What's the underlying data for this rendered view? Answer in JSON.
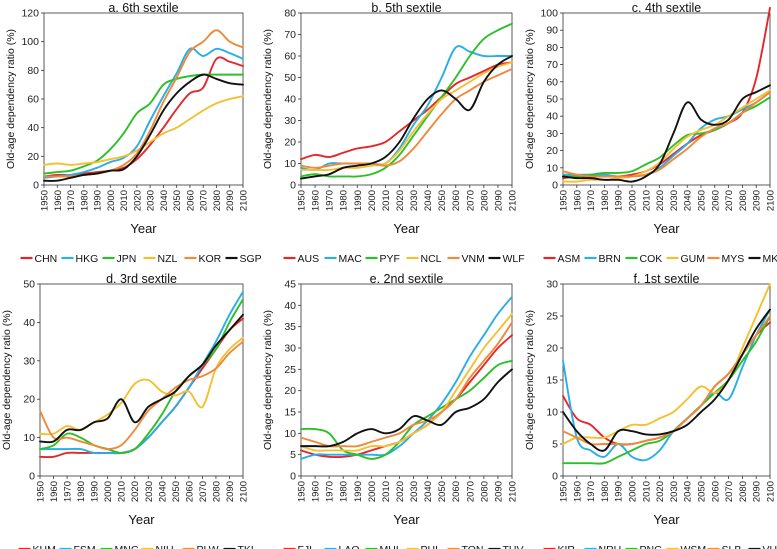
{
  "figure": {
    "xlabel": "Year",
    "ylabel": "Old-age dependency ratio (%)",
    "x_ticks": [
      1950,
      1960,
      1970,
      1980,
      1990,
      2000,
      2010,
      2020,
      2030,
      2040,
      2050,
      2060,
      2070,
      2080,
      2090,
      2100
    ],
    "palette": [
      "#e8262a",
      "#29aee5",
      "#2bc028",
      "#f5c030",
      "#ee8a3a",
      "#111111"
    ]
  },
  "chart_data": [
    {
      "type": "line",
      "title": "a. 6th sextile",
      "xlabel": "Year",
      "ylabel": "Old-age dependency ratio (%)",
      "xlim": [
        1950,
        2100
      ],
      "ylim": [
        0,
        120
      ],
      "yticks": [
        0,
        20,
        40,
        60,
        80,
        100,
        120
      ],
      "x": [
        1950,
        1960,
        1970,
        1980,
        1990,
        2000,
        2010,
        2020,
        2030,
        2040,
        2050,
        2060,
        2070,
        2080,
        2090,
        2100
      ],
      "series": [
        {
          "name": "CHN",
          "color": "#e8262a",
          "values": [
            6,
            7,
            7,
            8,
            9,
            10,
            12,
            18,
            28,
            40,
            53,
            64,
            68,
            88,
            86,
            83
          ]
        },
        {
          "name": "HKG",
          "color": "#29aee5",
          "values": [
            5,
            6,
            7,
            9,
            12,
            16,
            19,
            27,
            45,
            62,
            78,
            95,
            90,
            95,
            92,
            88
          ]
        },
        {
          "name": "JPN",
          "color": "#2bc028",
          "values": [
            8,
            9,
            10,
            13,
            17,
            25,
            36,
            50,
            57,
            70,
            74,
            76,
            77,
            77,
            77,
            77
          ]
        },
        {
          "name": "NZL",
          "color": "#f5c030",
          "values": [
            14,
            15,
            14,
            15,
            16,
            18,
            20,
            24,
            30,
            36,
            40,
            46,
            52,
            57,
            60,
            62
          ]
        },
        {
          "name": "KOR",
          "color": "#ee8a3a",
          "values": [
            6,
            6,
            6,
            7,
            8,
            10,
            14,
            22,
            38,
            58,
            75,
            93,
            100,
            108,
            100,
            96
          ]
        },
        {
          "name": "SGP",
          "color": "#111111",
          "values": [
            3,
            3,
            5,
            7,
            8,
            10,
            11,
            20,
            35,
            52,
            64,
            72,
            77,
            74,
            71,
            70
          ]
        }
      ]
    },
    {
      "type": "line",
      "title": "b. 5th sextile",
      "xlabel": "Year",
      "ylabel": "Old-age dependency ratio (%)",
      "xlim": [
        1950,
        2100
      ],
      "ylim": [
        0,
        80
      ],
      "yticks": [
        0,
        10,
        20,
        30,
        40,
        50,
        60,
        70,
        80
      ],
      "x": [
        1950,
        1960,
        1970,
        1980,
        1990,
        2000,
        2010,
        2020,
        2030,
        2040,
        2050,
        2060,
        2070,
        2080,
        2090,
        2100
      ],
      "series": [
        {
          "name": "AUS",
          "color": "#e8262a",
          "values": [
            12,
            14,
            13,
            15,
            17,
            18,
            20,
            25,
            30,
            35,
            41,
            47,
            50,
            53,
            56,
            57
          ]
        },
        {
          "name": "MAC",
          "color": "#29aee5",
          "values": [
            8,
            7,
            10,
            10,
            10,
            10,
            10,
            17,
            28,
            37,
            50,
            64,
            62,
            60,
            60,
            60
          ]
        },
        {
          "name": "PYF",
          "color": "#2bc028",
          "values": [
            4,
            5,
            4,
            4,
            4,
            5,
            8,
            14,
            23,
            32,
            41,
            50,
            60,
            68,
            72,
            75
          ]
        },
        {
          "name": "NCL",
          "color": "#f5c030",
          "values": [
            7,
            7,
            7,
            8,
            8,
            9,
            10,
            16,
            25,
            33,
            40,
            44,
            48,
            52,
            55,
            57
          ]
        },
        {
          "name": "VNM",
          "color": "#ee8a3a",
          "values": [
            9,
            8,
            9,
            10,
            10,
            10,
            9,
            11,
            17,
            25,
            33,
            40,
            44,
            48,
            51,
            54
          ]
        },
        {
          "name": "WLF",
          "color": "#111111",
          "values": [
            3,
            4,
            5,
            8,
            9,
            10,
            13,
            20,
            31,
            40,
            44,
            40,
            35,
            48,
            56,
            60
          ]
        }
      ]
    },
    {
      "type": "line",
      "title": "c. 4th sextile",
      "xlabel": "Year",
      "ylabel": "Old-age dependency ratio (%)",
      "xlim": [
        1950,
        2100
      ],
      "ylim": [
        0,
        100
      ],
      "yticks": [
        0,
        10,
        20,
        30,
        40,
        50,
        60,
        70,
        80,
        90,
        100
      ],
      "x": [
        1950,
        1960,
        1970,
        1980,
        1990,
        2000,
        2010,
        2020,
        2030,
        2040,
        2050,
        2060,
        2070,
        2080,
        2090,
        2100
      ],
      "series": [
        {
          "name": "ASM",
          "color": "#e8262a",
          "values": [
            4,
            5,
            5,
            5,
            5,
            6,
            8,
            12,
            18,
            24,
            29,
            32,
            36,
            42,
            62,
            103
          ]
        },
        {
          "name": "BRN",
          "color": "#29aee5",
          "values": [
            6,
            6,
            6,
            6,
            5,
            5,
            6,
            10,
            17,
            24,
            33,
            38,
            40,
            44,
            48,
            54
          ]
        },
        {
          "name": "COK",
          "color": "#2bc028",
          "values": [
            5,
            5,
            6,
            7,
            7,
            8,
            12,
            16,
            23,
            29,
            30,
            32,
            36,
            42,
            46,
            51
          ]
        },
        {
          "name": "GUM",
          "color": "#f5c030",
          "values": [
            2,
            2,
            3,
            3,
            4,
            5,
            8,
            13,
            21,
            28,
            32,
            35,
            40,
            45,
            50,
            55
          ]
        },
        {
          "name": "MYS",
          "color": "#ee8a3a",
          "values": [
            8,
            6,
            5,
            5,
            5,
            5,
            6,
            9,
            15,
            21,
            28,
            33,
            36,
            42,
            48,
            54
          ]
        },
        {
          "name": "MKD",
          "color": "#111111",
          "values": [
            5,
            4,
            4,
            3,
            3,
            2,
            5,
            12,
            30,
            48,
            38,
            35,
            38,
            50,
            54,
            58
          ]
        }
      ]
    },
    {
      "type": "line",
      "title": "d. 3rd sextile",
      "xlabel": "Year",
      "ylabel": "Old-age dependency ratio (%)",
      "xlim": [
        1950,
        2100
      ],
      "ylim": [
        0,
        50
      ],
      "yticks": [
        0,
        10,
        20,
        30,
        40,
        50
      ],
      "x": [
        1950,
        1960,
        1970,
        1980,
        1990,
        2000,
        2010,
        2020,
        2030,
        2040,
        2050,
        2060,
        2070,
        2080,
        2090,
        2100
      ],
      "series": [
        {
          "name": "KHM",
          "color": "#e8262a",
          "values": [
            5,
            5,
            6,
            6,
            6,
            6,
            6,
            7,
            10,
            14,
            18,
            23,
            28,
            33,
            38,
            41
          ]
        },
        {
          "name": "FSM",
          "color": "#29aee5",
          "values": [
            7,
            7,
            7,
            7,
            6,
            6,
            6,
            7,
            10,
            14,
            18,
            23,
            29,
            35,
            42,
            48
          ]
        },
        {
          "name": "MNG",
          "color": "#2bc028",
          "values": [
            7,
            8,
            11,
            10,
            8,
            7,
            6,
            7,
            11,
            16,
            22,
            26,
            29,
            33,
            40,
            46
          ]
        },
        {
          "name": "NIU",
          "color": "#f5c030",
          "values": [
            11,
            11,
            13,
            12,
            14,
            16,
            19,
            24,
            25,
            22,
            21,
            22,
            18,
            28,
            33,
            36
          ]
        },
        {
          "name": "PLW",
          "color": "#ee8a3a",
          "values": [
            17,
            10,
            10,
            9,
            8,
            7,
            8,
            12,
            17,
            20,
            23,
            25,
            26,
            28,
            32,
            35
          ]
        },
        {
          "name": "TKL",
          "color": "#111111",
          "values": [
            9,
            9,
            12,
            12,
            14,
            15,
            20,
            14,
            18,
            20,
            22,
            26,
            29,
            34,
            38,
            42
          ]
        }
      ]
    },
    {
      "type": "line",
      "title": "e. 2nd sextile",
      "xlabel": "Year",
      "ylabel": "Old-age dependency ratio (%)",
      "xlim": [
        1950,
        2100
      ],
      "ylim": [
        0,
        45
      ],
      "yticks": [
        0,
        5,
        10,
        15,
        20,
        25,
        30,
        35,
        40,
        45
      ],
      "x": [
        1950,
        1960,
        1970,
        1980,
        1990,
        2000,
        2010,
        2020,
        2030,
        2040,
        2050,
        2060,
        2070,
        2080,
        2090,
        2100
      ],
      "series": [
        {
          "name": "FJI",
          "color": "#e8262a",
          "values": [
            6,
            5,
            4.5,
            4.5,
            5,
            6,
            7,
            8,
            10,
            12,
            15,
            18,
            22,
            26,
            30,
            33
          ]
        },
        {
          "name": "LAO",
          "color": "#29aee5",
          "values": [
            4,
            5,
            5,
            5,
            5,
            5,
            5,
            7,
            10,
            13,
            17,
            22,
            28,
            33,
            38,
            42
          ]
        },
        {
          "name": "MHL",
          "color": "#2bc028",
          "values": [
            11,
            11,
            10,
            6,
            5,
            4,
            5,
            8,
            12,
            14,
            16,
            18,
            20,
            23,
            26,
            27
          ]
        },
        {
          "name": "PHL",
          "color": "#f5c030",
          "values": [
            7,
            6,
            6,
            6,
            6,
            7,
            7,
            8,
            10,
            12,
            15,
            20,
            25,
            30,
            34,
            38
          ]
        },
        {
          "name": "TON",
          "color": "#ee8a3a",
          "values": [
            9,
            8,
            7,
            7,
            7,
            8,
            9,
            10,
            12,
            13,
            15,
            18,
            23,
            27,
            31,
            36
          ]
        },
        {
          "name": "TUV",
          "color": "#111111",
          "values": [
            7,
            7,
            7,
            8,
            10,
            11,
            10,
            11,
            14,
            13,
            12,
            15,
            16,
            18,
            22,
            25
          ]
        }
      ]
    },
    {
      "type": "line",
      "title": "f. 1st sextile",
      "xlabel": "Year",
      "ylabel": "Old-age dependency ratio (%)",
      "xlim": [
        1950,
        2100
      ],
      "ylim": [
        0,
        30
      ],
      "yticks": [
        0,
        5,
        10,
        15,
        20,
        25,
        30
      ],
      "x": [
        1950,
        1960,
        1970,
        1980,
        1990,
        2000,
        2010,
        2020,
        2030,
        2040,
        2050,
        2060,
        2070,
        2080,
        2090,
        2100
      ],
      "series": [
        {
          "name": "KIR",
          "color": "#e8262a",
          "values": [
            12.5,
            9,
            8,
            6,
            5,
            5,
            5.5,
            6,
            7,
            9,
            11,
            14,
            16,
            19,
            22,
            24
          ]
        },
        {
          "name": "NRU",
          "color": "#29aee5",
          "values": [
            18,
            6,
            4,
            3,
            5,
            3,
            2.5,
            4,
            7,
            9,
            11,
            13,
            12,
            17,
            22,
            26
          ]
        },
        {
          "name": "PNG",
          "color": "#2bc028",
          "values": [
            2,
            2,
            2,
            2,
            3,
            4,
            5,
            5.5,
            7,
            9,
            11,
            13,
            15,
            18,
            21,
            25
          ]
        },
        {
          "name": "WSM",
          "color": "#f5c030",
          "values": [
            5,
            6,
            6,
            6,
            7,
            8,
            8,
            9,
            10,
            12,
            14,
            13,
            15,
            20,
            25,
            30
          ]
        },
        {
          "name": "SLB",
          "color": "#ee8a3a",
          "values": [
            7,
            6,
            5,
            5,
            5,
            5,
            5.5,
            6,
            7,
            9,
            11,
            14,
            16,
            19,
            22,
            25
          ]
        },
        {
          "name": "VUT",
          "color": "#111111",
          "values": [
            10,
            7,
            5,
            4,
            7,
            7,
            6.5,
            6.5,
            7,
            8,
            10,
            12,
            15,
            19,
            23,
            26
          ]
        }
      ]
    }
  ]
}
